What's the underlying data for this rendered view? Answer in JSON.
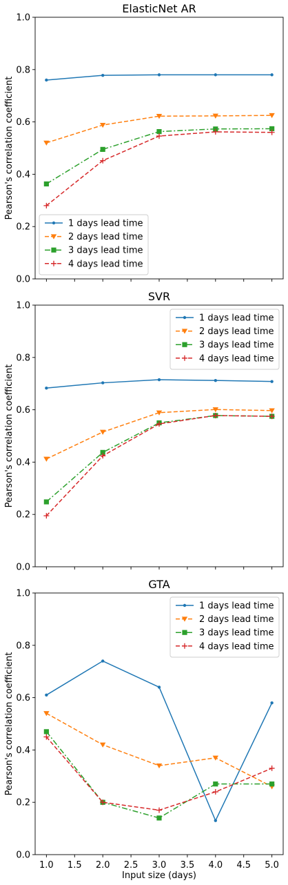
{
  "chart_data": [
    {
      "type": "line",
      "title": "ElasticNet AR",
      "xlabel": "",
      "ylabel": "Pearson's correlation coefficient",
      "ylim": [
        0,
        1
      ],
      "xlim": [
        0.8,
        5.2
      ],
      "xticks": [
        "1.0",
        "1.5",
        "2.0",
        "2.5",
        "3.0",
        "3.5",
        "4.0",
        "4.5",
        "5.0"
      ],
      "xticklabels_shown": false,
      "yticks": [
        "0.0",
        "0.2",
        "0.4",
        "0.6",
        "0.8",
        "1.0"
      ],
      "legend_position": "lower-left",
      "x": [
        1,
        2,
        3,
        4,
        5
      ],
      "series": [
        {
          "name": "1 days lead time",
          "color": "#1f77b4",
          "marker": "point",
          "dash": "solid",
          "values": [
            0.76,
            0.778,
            0.78,
            0.78,
            0.78
          ]
        },
        {
          "name": "2 days lead time",
          "color": "#ff7f0e",
          "marker": "triangle-down",
          "dash": "dashed",
          "values": [
            0.52,
            0.588,
            0.622,
            0.623,
            0.625
          ]
        },
        {
          "name": "3 days lead time",
          "color": "#2ca02c",
          "marker": "square",
          "dash": "dashdot",
          "values": [
            0.363,
            0.495,
            0.563,
            0.573,
            0.574
          ]
        },
        {
          "name": "4 days lead time",
          "color": "#d62728",
          "marker": "plus",
          "dash": "dashed",
          "values": [
            0.28,
            0.452,
            0.546,
            0.562,
            0.56
          ]
        }
      ]
    },
    {
      "type": "line",
      "title": "SVR",
      "xlabel": "",
      "ylabel": "Pearson's correlation coefficient",
      "ylim": [
        0,
        1
      ],
      "xlim": [
        0.8,
        5.2
      ],
      "xticks": [
        "1.0",
        "1.5",
        "2.0",
        "2.5",
        "3.0",
        "3.5",
        "4.0",
        "4.5",
        "5.0"
      ],
      "xticklabels_shown": false,
      "yticks": [
        "0.0",
        "0.2",
        "0.4",
        "0.6",
        "0.8",
        "1.0"
      ],
      "legend_position": "upper-right",
      "x": [
        1,
        2,
        3,
        4,
        5
      ],
      "series": [
        {
          "name": "1 days lead time",
          "color": "#1f77b4",
          "marker": "point",
          "dash": "solid",
          "values": [
            0.683,
            0.703,
            0.715,
            0.712,
            0.708
          ]
        },
        {
          "name": "2 days lead time",
          "color": "#ff7f0e",
          "marker": "triangle-down",
          "dash": "dashed",
          "values": [
            0.412,
            0.515,
            0.589,
            0.601,
            0.597
          ]
        },
        {
          "name": "3 days lead time",
          "color": "#2ca02c",
          "marker": "square",
          "dash": "dashdot",
          "values": [
            0.248,
            0.437,
            0.55,
            0.578,
            0.575
          ]
        },
        {
          "name": "4 days lead time",
          "color": "#d62728",
          "marker": "plus",
          "dash": "dashed",
          "values": [
            0.195,
            0.424,
            0.546,
            0.578,
            0.575
          ]
        }
      ]
    },
    {
      "type": "line",
      "title": "GTA",
      "xlabel": "Input size (days)",
      "ylabel": "Pearson's correlation coefficient",
      "ylim": [
        0,
        1
      ],
      "xlim": [
        0.8,
        5.2
      ],
      "xticks": [
        "1.0",
        "1.5",
        "2.0",
        "2.5",
        "3.0",
        "3.5",
        "4.0",
        "4.5",
        "5.0"
      ],
      "xticklabels_shown": true,
      "yticks": [
        "0.0",
        "0.2",
        "0.4",
        "0.6",
        "0.8",
        "1.0"
      ],
      "legend_position": "upper-right",
      "x": [
        1,
        2,
        3,
        4,
        5
      ],
      "series": [
        {
          "name": "1 days lead time",
          "color": "#1f77b4",
          "marker": "point",
          "dash": "solid",
          "values": [
            0.61,
            0.74,
            0.64,
            0.13,
            0.58
          ]
        },
        {
          "name": "2 days lead time",
          "color": "#ff7f0e",
          "marker": "triangle-down",
          "dash": "dashed",
          "values": [
            0.54,
            0.42,
            0.34,
            0.37,
            0.26
          ]
        },
        {
          "name": "3 days lead time",
          "color": "#2ca02c",
          "marker": "square",
          "dash": "dashdot",
          "values": [
            0.47,
            0.2,
            0.14,
            0.27,
            0.27
          ]
        },
        {
          "name": "4 days lead time",
          "color": "#d62728",
          "marker": "plus",
          "dash": "dashed",
          "values": [
            0.45,
            0.2,
            0.17,
            0.24,
            0.33
          ]
        }
      ]
    }
  ]
}
